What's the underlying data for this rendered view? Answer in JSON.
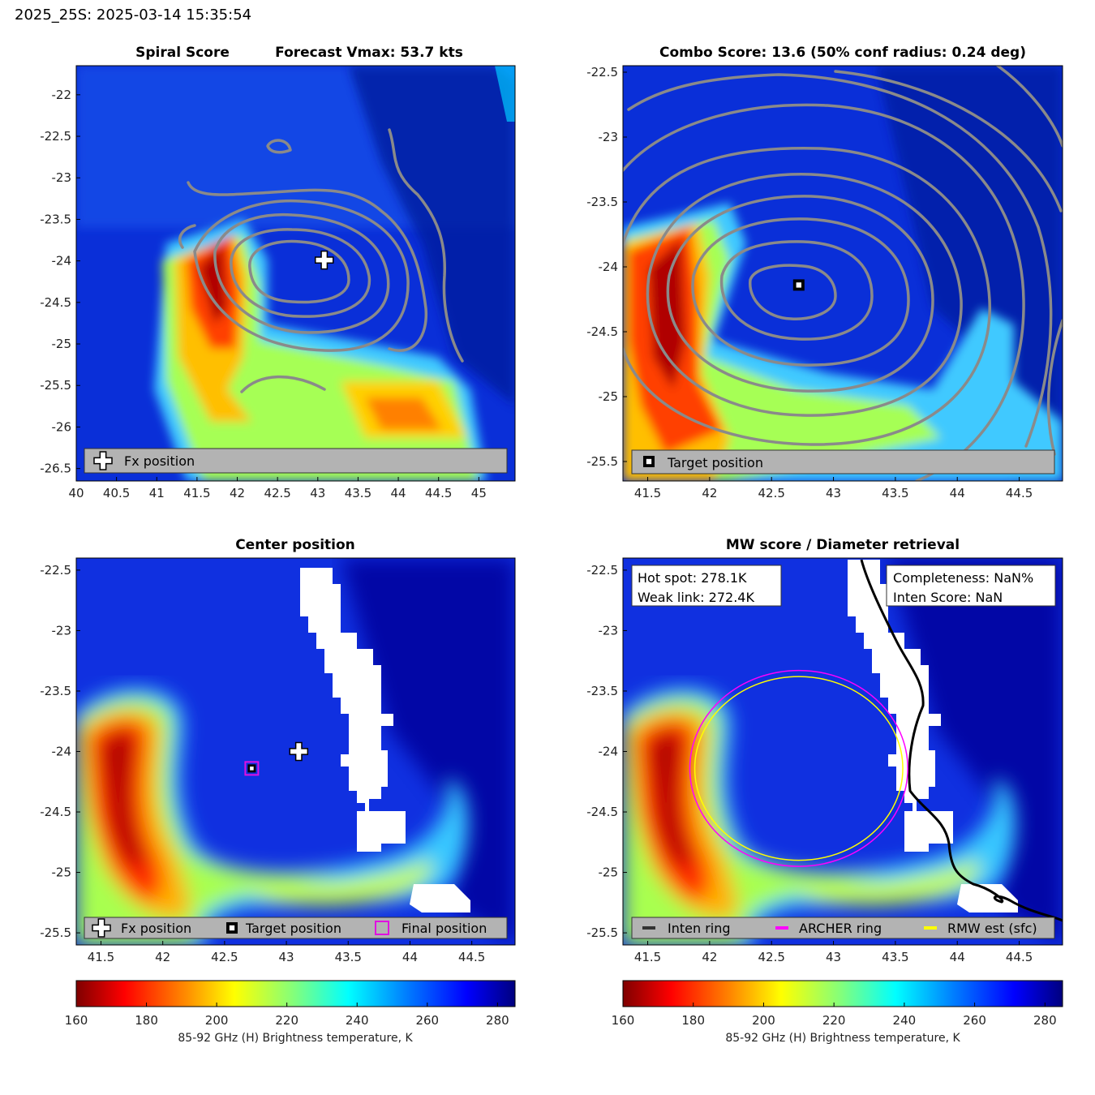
{
  "header": {
    "title": "2025_25S: 2025-03-14 15:35:54"
  },
  "colors": {
    "contour": "#8a8a8a",
    "legend_bg": "#b3b3b3",
    "fx_marker": "#ffffff",
    "target_marker": "#000000",
    "final_marker": "#e010e0",
    "inten_ring": "#333333",
    "archer_ring": "#ff00ff",
    "rmw_ring": "#ffff00",
    "missing": "#ffffff"
  },
  "chart_data": [
    {
      "type": "heatmap",
      "id": "spiral",
      "title_left": "Spiral Score",
      "title_right": "Forecast Vmax: 53.7 kts",
      "xlim": [
        40.0,
        45.45
      ],
      "ylim": [
        -26.65,
        -21.65
      ],
      "x_ticks": [
        40,
        40.5,
        41,
        41.5,
        42,
        42.5,
        43,
        43.5,
        44,
        44.5,
        45
      ],
      "x_tick_labels": [
        "40",
        "40.5",
        "41",
        "41.5",
        "42",
        "42.5",
        "43",
        "43.5",
        "44",
        "44.5",
        "45"
      ],
      "y_ticks": [
        -22,
        -22.5,
        -23,
        -23.5,
        -24,
        -24.5,
        -25,
        -25.5,
        -26,
        -26.5
      ],
      "y_tick_labels": [
        "-22",
        "-22.5",
        "-23",
        "-23.5",
        "-24",
        "-24.5",
        "-25",
        "-25.5",
        "-26",
        "-26.5"
      ],
      "markers": [
        {
          "kind": "fx",
          "lon": 43.08,
          "lat": -23.99
        }
      ],
      "legend": {
        "position": "bottom",
        "entries": [
          "Fx position"
        ]
      }
    },
    {
      "type": "heatmap",
      "id": "combo",
      "title": "Combo Score: 13.6  (50% conf radius: 0.24 deg)",
      "xlim": [
        41.3,
        44.85
      ],
      "ylim": [
        -25.65,
        -22.45
      ],
      "x_ticks": [
        41.5,
        42,
        42.5,
        43,
        43.5,
        44,
        44.5
      ],
      "x_tick_labels": [
        "41.5",
        "42",
        "42.5",
        "43",
        "43.5",
        "44",
        "44.5"
      ],
      "y_ticks": [
        -22.5,
        -23,
        -23.5,
        -24,
        -24.5,
        -25,
        -25.5
      ],
      "y_tick_labels": [
        "-22.5",
        "-23",
        "-23.5",
        "-24",
        "-24.5",
        "-25",
        "-25.5"
      ],
      "markers": [
        {
          "kind": "target",
          "lon": 42.72,
          "lat": -24.14
        }
      ],
      "legend": {
        "position": "bottom",
        "entries": [
          "Target position"
        ]
      }
    },
    {
      "type": "heatmap",
      "id": "center",
      "title": "Center position",
      "xlim": [
        41.3,
        44.85
      ],
      "ylim": [
        -25.6,
        -22.4
      ],
      "x_ticks": [
        41.5,
        42,
        42.5,
        43,
        43.5,
        44,
        44.5
      ],
      "x_tick_labels": [
        "41.5",
        "42",
        "42.5",
        "43",
        "43.5",
        "44",
        "44.5"
      ],
      "y_ticks": [
        -22.5,
        -23,
        -23.5,
        -24,
        -24.5,
        -25,
        -25.5
      ],
      "y_tick_labels": [
        "-22.5",
        "-23",
        "-23.5",
        "-24",
        "-24.5",
        "-25",
        "-25.5"
      ],
      "markers": [
        {
          "kind": "fx",
          "lon": 43.1,
          "lat": -24.0
        },
        {
          "kind": "target",
          "lon": 42.72,
          "lat": -24.14
        },
        {
          "kind": "final",
          "lon": 42.72,
          "lat": -24.14
        }
      ],
      "legend": {
        "position": "bottom",
        "entries": [
          "Fx position",
          "Target position",
          "Final position"
        ]
      }
    },
    {
      "type": "heatmap",
      "id": "mw",
      "title": "MW score / Diameter retrieval",
      "xlim": [
        41.3,
        44.85
      ],
      "ylim": [
        -25.6,
        -22.4
      ],
      "x_ticks": [
        41.5,
        42,
        42.5,
        43,
        43.5,
        44,
        44.5
      ],
      "x_tick_labels": [
        "41.5",
        "42",
        "42.5",
        "43",
        "43.5",
        "44",
        "44.5"
      ],
      "y_ticks": [
        -22.5,
        -23,
        -23.5,
        -24,
        -24.5,
        -25,
        -25.5
      ],
      "y_tick_labels": [
        "-22.5",
        "-23",
        "-23.5",
        "-24",
        "-24.5",
        "-25",
        "-25.5"
      ],
      "rings": [
        {
          "kind": "archer",
          "lon": 42.72,
          "lat": -24.14,
          "rx_deg": 0.88,
          "ry_deg": 0.81
        },
        {
          "kind": "rmw",
          "lon": 42.72,
          "lat": -24.14,
          "rx_deg": 0.84,
          "ry_deg": 0.76
        }
      ],
      "info_left": {
        "hot_spot": "Hot spot: 278.1K",
        "weak_link": "Weak link: 272.4K"
      },
      "info_right": {
        "completeness": "Completeness: NaN%",
        "inten_score": "Inten Score: NaN"
      },
      "legend": {
        "position": "bottom",
        "entries": [
          "Inten ring",
          "ARCHER ring",
          "RMW est (sfc)"
        ]
      }
    }
  ],
  "colorbars": [
    {
      "id": "cb-left",
      "range": [
        160,
        285
      ],
      "ticks": [
        160,
        180,
        200,
        220,
        240,
        260,
        280
      ],
      "tick_labels": [
        "160",
        "180",
        "200",
        "220",
        "240",
        "260",
        "280"
      ],
      "label": "85-92 GHz (H) Brightness temperature, K"
    },
    {
      "id": "cb-right",
      "range": [
        160,
        285
      ],
      "ticks": [
        160,
        180,
        200,
        220,
        240,
        260,
        280
      ],
      "tick_labels": [
        "160",
        "180",
        "200",
        "220",
        "240",
        "260",
        "280"
      ],
      "label": "85-92 GHz (H) Brightness temperature, K"
    }
  ]
}
